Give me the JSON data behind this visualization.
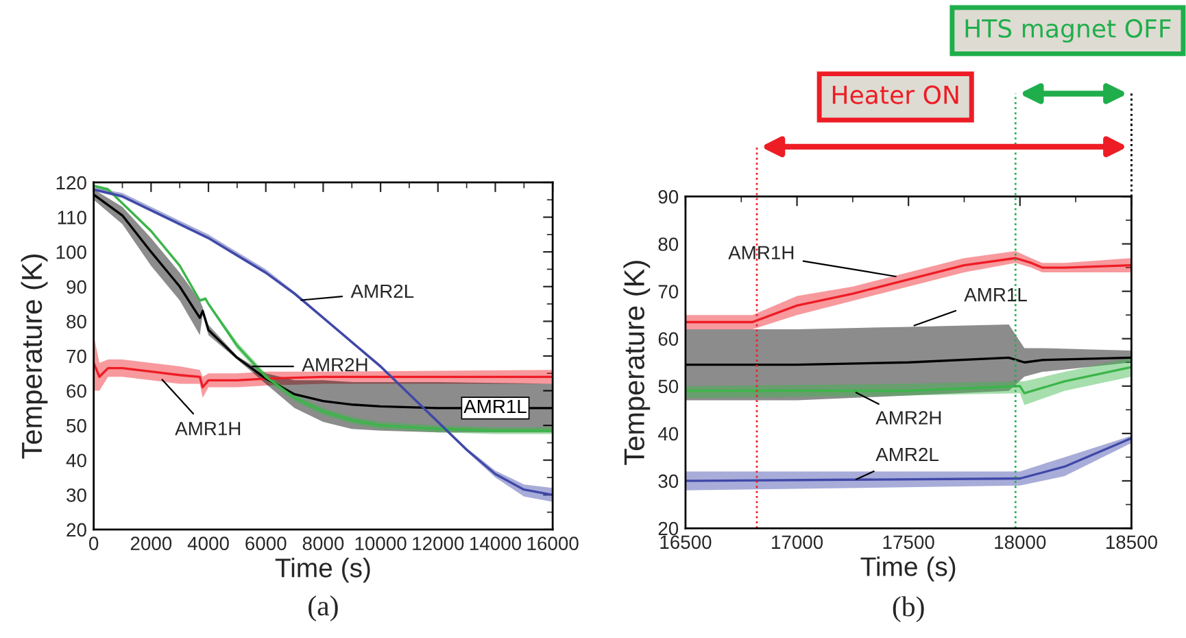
{
  "chart_data": [
    {
      "type": "line",
      "xlabel": "Time (s)",
      "ylabel": "Temperature (K)",
      "xlim": [
        0,
        16000
      ],
      "xticks": [
        0,
        2000,
        4000,
        6000,
        8000,
        10000,
        12000,
        14000,
        16000
      ],
      "ylim": [
        20,
        120
      ],
      "yticks": [
        20,
        30,
        40,
        50,
        60,
        70,
        80,
        90,
        100,
        110,
        120
      ],
      "grid": false,
      "legend": false,
      "series": [
        {
          "color": "#ee1c25",
          "x": [
            0,
            200,
            500,
            1000,
            2000,
            3000,
            3700,
            3800,
            4000,
            5000,
            6000,
            8000,
            16000
          ],
          "values": [
            68,
            64,
            66.5,
            66.5,
            65.5,
            64.5,
            64,
            61,
            63,
            63,
            63.5,
            64,
            64
          ],
          "lower": [
            60,
            60,
            64,
            64,
            63,
            62,
            62,
            58,
            61,
            61,
            61.5,
            62,
            62
          ],
          "upper": [
            76,
            68,
            69,
            69,
            68,
            67,
            66,
            64,
            65,
            65,
            65.5,
            65.5,
            66
          ]
        },
        {
          "color": "#000000",
          "x": [
            0,
            1000,
            2000,
            3000,
            3700,
            3800,
            4000,
            5000,
            6000,
            7000,
            8000,
            9000,
            10000,
            12000,
            16000
          ],
          "values": [
            116.5,
            110.5,
            100,
            90,
            81,
            83,
            77.5,
            69.5,
            63.5,
            59,
            57,
            56,
            55.5,
            55,
            55
          ],
          "lower": [
            115,
            108,
            96,
            86,
            76,
            82,
            76,
            69,
            62,
            55,
            51,
            49,
            48.5,
            48,
            48
          ],
          "upper": [
            118,
            113,
            104,
            94,
            86,
            84,
            79,
            70,
            65,
            63,
            63,
            62.5,
            62.5,
            62.5,
            62
          ]
        },
        {
          "color": "#3cb54a",
          "x": [
            0,
            500,
            1000,
            2000,
            3000,
            3700,
            3900,
            4000,
            5000,
            6000,
            7000,
            8000,
            9000,
            10000,
            12000,
            14000,
            16000
          ],
          "values": [
            119,
            118,
            114,
            106,
            96,
            86,
            86.5,
            85,
            73,
            64,
            58,
            54,
            51.5,
            50,
            49,
            48.5,
            48.5
          ],
          "lower": [
            118.5,
            117.5,
            113.5,
            105.5,
            95.5,
            85.5,
            86,
            84.5,
            72,
            63,
            57,
            53,
            50.5,
            49,
            48,
            47.5,
            47.5
          ],
          "upper": [
            119.5,
            118.5,
            114.5,
            106.5,
            96.5,
            86.5,
            87,
            85.5,
            74,
            65,
            59,
            55,
            52.5,
            51,
            50,
            49.5,
            49.5
          ]
        },
        {
          "color": "#3f48a8",
          "x": [
            0,
            1000,
            2000,
            3000,
            4000,
            5000,
            6000,
            7000,
            8000,
            9000,
            10000,
            11000,
            12000,
            12500,
            13000,
            14000,
            15000,
            16000
          ],
          "values": [
            118,
            116,
            112,
            108,
            104,
            99,
            94,
            88,
            81,
            74,
            67,
            59,
            51,
            47,
            43,
            36,
            31.5,
            30
          ],
          "lower": [
            117.5,
            115.5,
            111.5,
            107.5,
            103.5,
            98.5,
            93.5,
            87.5,
            80.5,
            73.5,
            66.5,
            58.5,
            50.5,
            46.5,
            42.5,
            35,
            29.5,
            28
          ],
          "upper": [
            118.5,
            117,
            113,
            109,
            105,
            100,
            95,
            88.5,
            81.5,
            74.5,
            67.5,
            59.5,
            51.5,
            47.5,
            43.5,
            37,
            33,
            32
          ]
        }
      ],
      "annotations": [
        {
          "text": "AMR2L",
          "x": 7100,
          "y": 86
        },
        {
          "text": "AMR2H",
          "x": 5400,
          "y": 67
        },
        {
          "text": "AMR1H",
          "x": 2300,
          "y": 64
        },
        {
          "text": "AMR1L",
          "x": 14000,
          "y": 55
        },
        "(a)"
      ]
    },
    {
      "type": "line",
      "xlabel": "Time (s)",
      "ylabel": "Temperature (K)",
      "xlim": [
        16500,
        18500
      ],
      "xticks": [
        16500,
        17000,
        17500,
        18000,
        18500
      ],
      "ylim": [
        20,
        90
      ],
      "yticks": [
        20,
        30,
        40,
        50,
        60,
        70,
        80,
        90
      ],
      "grid": false,
      "legend": false,
      "series": [
        {
          "color": "#ee1c25",
          "x": [
            16500,
            16800,
            17000,
            17250,
            17500,
            17750,
            17980,
            18050,
            18100,
            18200,
            18500
          ],
          "values": [
            63.5,
            63.5,
            67,
            69.5,
            72.5,
            75.5,
            77,
            76,
            75,
            75,
            75.5
          ],
          "lower": [
            62,
            62,
            65,
            68,
            71,
            74,
            76,
            75,
            74,
            74,
            74
          ],
          "upper": [
            65,
            65,
            69,
            71,
            74,
            77,
            78.5,
            77,
            76,
            76,
            77
          ]
        },
        {
          "color": "#000000",
          "x": [
            16500,
            17000,
            17500,
            17950,
            18020,
            18100,
            18500
          ],
          "values": [
            54.5,
            54.5,
            55,
            56,
            55,
            55.5,
            56
          ],
          "lower": [
            47,
            47,
            48,
            49,
            52,
            53,
            55
          ],
          "upper": [
            62,
            62,
            62.5,
            63,
            58,
            58,
            57.5
          ]
        },
        {
          "color": "#3cb54a",
          "x": [
            16500,
            17500,
            18000,
            18020,
            18200,
            18500
          ],
          "values": [
            49,
            49,
            50,
            48.5,
            51,
            54
          ],
          "lower": [
            47.5,
            48,
            48.5,
            46,
            49,
            52
          ],
          "upper": [
            50,
            50.5,
            51,
            51,
            53,
            56
          ]
        },
        {
          "color": "#3f48a8",
          "x": [
            16500,
            18000,
            18200,
            18500
          ],
          "values": [
            30,
            30.5,
            33,
            39
          ],
          "lower": [
            28,
            29,
            31,
            38
          ],
          "upper": [
            32,
            32,
            35,
            39.5
          ]
        }
      ],
      "ref_lines": [
        {
          "axis": "x",
          "value": 16820,
          "label": "Heater ON",
          "color": "#ee1c25",
          "line_style": "dotted"
        },
        {
          "axis": "x",
          "value": 17980,
          "label": "HTS magnet OFF",
          "color": "#1fae4b",
          "line_style": "dotted"
        }
      ],
      "annotations": [
        {
          "text": "AMR1H",
          "x": 17460,
          "y": 73
        },
        {
          "text": "AMR1L",
          "x": 17510,
          "y": 62.5
        },
        {
          "text": "AMR2H",
          "x": 17250,
          "y": 49
        },
        {
          "text": "AMR2L",
          "x": 17250,
          "y": 30
        },
        "(b)"
      ]
    }
  ]
}
